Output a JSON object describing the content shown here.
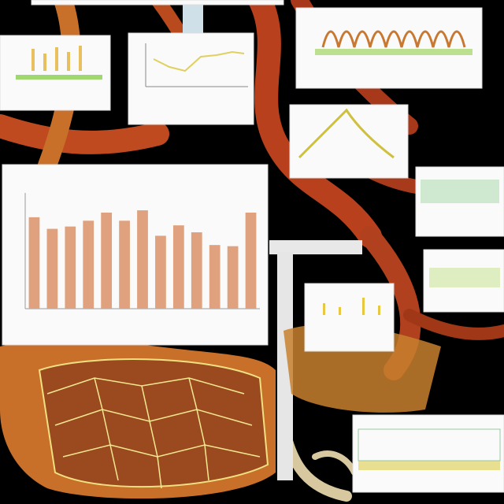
{
  "chart_data": {
    "type": "bar",
    "values": [
      79,
      69,
      71,
      76,
      83,
      76,
      85,
      63,
      72,
      66,
      55,
      54,
      83
    ],
    "color": "#e0a27e",
    "ylim": [
      0,
      100
    ]
  }
}
